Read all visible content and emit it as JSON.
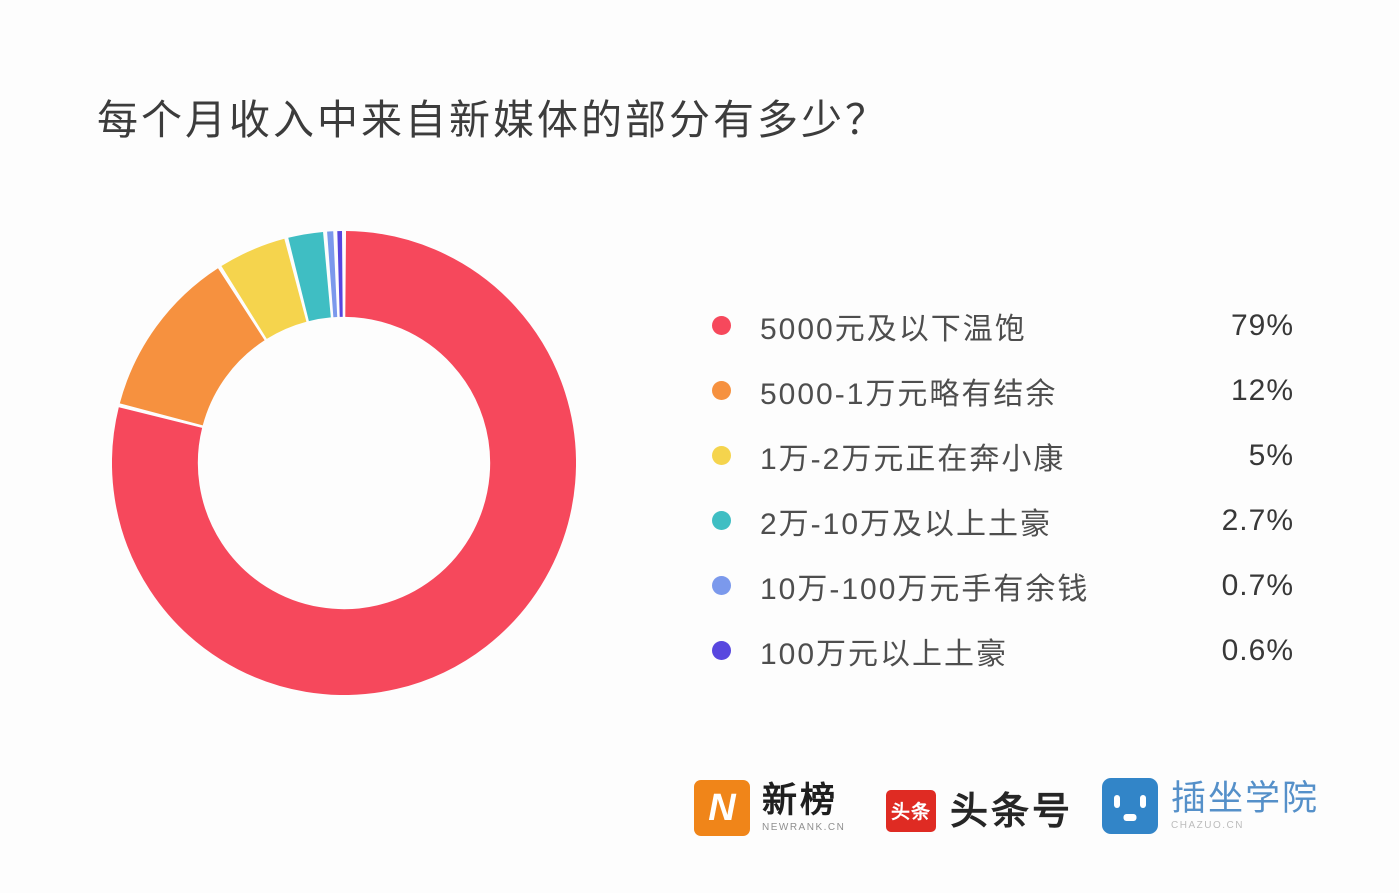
{
  "title": "每个月收入中来自新媒体的部分有多少？",
  "chart_data": {
    "type": "pie",
    "subtype": "donut",
    "title": "每个月收入中来自新媒体的部分有多少？",
    "categories": [
      "5000元及以下温饱",
      "5000-1万元略有结余",
      "1万-2万元正在奔小康",
      "2万-10万及以上土豪",
      "10万-100万元手有余钱",
      "100万元以上土豪"
    ],
    "values": [
      79,
      12,
      5,
      2.7,
      0.7,
      0.6
    ],
    "value_labels": [
      "79%",
      "12%",
      "5%",
      "2.7%",
      "0.7%",
      "0.6%"
    ],
    "colors": [
      "#f6485c",
      "#f6913f",
      "#f5d44d",
      "#3fbec3",
      "#7b99ec",
      "#5847df"
    ],
    "legend_position": "right",
    "start_angle_deg": 0,
    "direction": "clockwise",
    "inner_radius_ratio": 0.63,
    "segment_gap_deg": 1.0,
    "background": "#fdfdfd"
  },
  "footer": {
    "newrank": {
      "icon_letter": "N",
      "name": "新榜",
      "subtext": "NEWRANK.CN",
      "icon_color": "#f08519"
    },
    "toutiao": {
      "icon_text": "头条",
      "name": "头条号",
      "icon_color": "#df2b23"
    },
    "chazuo": {
      "name": "插坐学院",
      "subtext": "CHAZUO.CN",
      "icon_color": "#3285c8"
    }
  }
}
